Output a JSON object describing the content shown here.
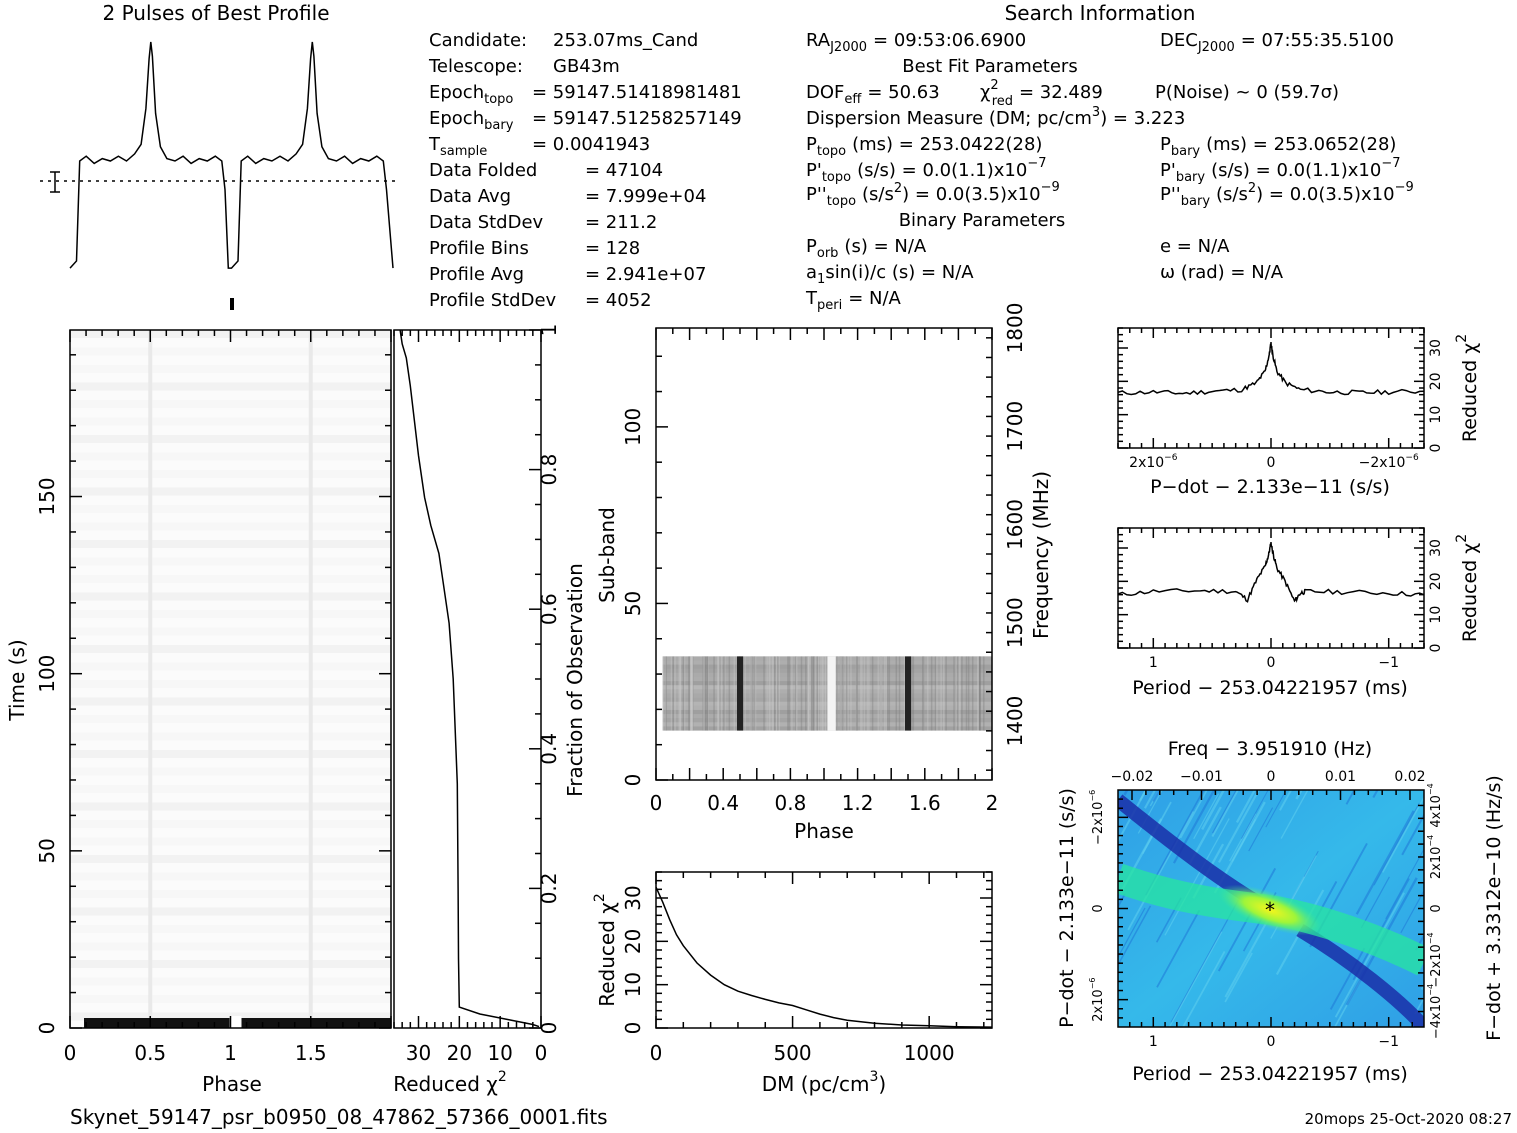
{
  "header": {
    "profile_title": "2 Pulses of Best Profile",
    "search_title": "Search Information",
    "best_fit_title": "Best Fit Parameters",
    "binary_title": "Binary Parameters"
  },
  "info_col1": [
    {
      "label": "Candidate:",
      "value": "253.07ms_Cand"
    },
    {
      "label": "Telescope:",
      "value": "GB43m"
    },
    {
      "label": "Epoch",
      "sub": "topo",
      "value": "= 59147.51418981481"
    },
    {
      "label": "Epoch",
      "sub": "bary",
      "value": "= 59147.51258257149"
    },
    {
      "label": "T",
      "sub": "sample",
      "value": "=  0.0041943"
    },
    {
      "label": "Data Folded",
      "value": "=  47104"
    },
    {
      "label": "Data Avg",
      "value": "=  7.999e+04"
    },
    {
      "label": "Data StdDev",
      "value": "=  211.2"
    },
    {
      "label": "Profile Bins",
      "value": "=  128"
    },
    {
      "label": "Profile Avg",
      "value": "=  2.941e+07"
    },
    {
      "label": "Profile StdDev",
      "value": "=  4052"
    }
  ],
  "info_col2": {
    "ra": "RA",
    "ra_sub": "J2000",
    "ra_value": "= 09:53:06.6900",
    "dof": "DOF",
    "dof_sub": "eff",
    "dof_value": "= 50.63",
    "chi": "χ",
    "chi_sup": "2",
    "chi_sub": "red",
    "chi_value": "= 32.489",
    "dm_text": "Dispersion Measure (DM; pc/cm",
    "dm_sup": "3",
    "dm_value": ") = 3.223",
    "ptopo": "P",
    "ptopo_sub": "topo",
    "ptopo_value": "(ms) =  253.0422(28)",
    "pdtopo": "P'",
    "pdtopo_sub": "topo",
    "pdtopo_value": "(s/s) = 0.0(1.1)x10",
    "pdtopo_exp": "−7",
    "pddtopo": "P''",
    "pddtopo_sub": "topo",
    "pddtopo_value": "(s/s",
    "pddtopo_sup": "2",
    "pddtopo_value2": ") = 0.0(3.5)x10",
    "pddtopo_exp": "−9",
    "porb": "P",
    "porb_sub": "orb",
    "porb_value": "(s) = N/A",
    "asini": "a",
    "asini_sub": "1",
    "asini_value": "sin(i)/c (s) = N/A",
    "tperi": "T",
    "tperi_sub": "peri",
    "tperi_value": "= N/A"
  },
  "info_col3": {
    "dec": "DEC",
    "dec_sub": "J2000",
    "dec_value": "= 07:55:35.5100",
    "pnoise": "P(Noise) ~ 0   (59.7σ)",
    "pbary": "P",
    "pbary_sub": "bary",
    "pbary_value": "(ms) =  253.0652(28)",
    "pdbary": "P'",
    "pdbary_sub": "bary",
    "pdbary_value": "(s/s) = 0.0(1.1)x10",
    "pdbary_exp": "−7",
    "pddbary": "P''",
    "pddbary_sub": "bary",
    "pddbary_value": "(s/s",
    "pddbary_sup": "2",
    "pddbary_value2": ") = 0.0(3.5)x10",
    "pddbary_exp": "−9",
    "ecc": "e = N/A",
    "omega": "ω (rad) = N/A"
  },
  "footer": {
    "filename": "Skynet_59147_psr_b0950_08_47862_57366_0001.fits",
    "stamp": "20mops 25-Oct-2020 08:27"
  },
  "chart_data": [
    {
      "id": "profile",
      "type": "line",
      "title": "2 Pulses of Best Profile",
      "x": [
        0,
        0.04,
        0.06,
        0.1,
        0.15,
        0.2,
        0.25,
        0.3,
        0.35,
        0.4,
        0.44,
        0.47,
        0.49,
        0.5,
        0.51,
        0.53,
        0.56,
        0.6,
        0.65,
        0.7,
        0.75,
        0.8,
        0.85,
        0.9,
        0.94,
        0.96,
        0.98,
        1.0,
        1.04,
        1.06,
        1.1,
        1.15,
        1.2,
        1.25,
        1.3,
        1.35,
        1.4,
        1.44,
        1.47,
        1.49,
        1.5,
        1.51,
        1.53,
        1.56,
        1.6,
        1.65,
        1.7,
        1.75,
        1.8,
        1.85,
        1.9,
        1.94,
        1.96,
        2.0
      ],
      "values": [
        0.05,
        0.08,
        0.5,
        0.52,
        0.49,
        0.51,
        0.5,
        0.52,
        0.5,
        0.53,
        0.57,
        0.72,
        0.93,
        1.0,
        0.94,
        0.7,
        0.56,
        0.51,
        0.5,
        0.52,
        0.49,
        0.51,
        0.5,
        0.52,
        0.5,
        0.38,
        0.05,
        0.05,
        0.08,
        0.5,
        0.52,
        0.49,
        0.51,
        0.5,
        0.52,
        0.5,
        0.53,
        0.57,
        0.72,
        0.93,
        1.0,
        0.94,
        0.7,
        0.56,
        0.51,
        0.5,
        0.52,
        0.49,
        0.51,
        0.5,
        0.52,
        0.5,
        0.38,
        0.05
      ]
    },
    {
      "id": "time-phase",
      "type": "heatmap",
      "xlabel": "Phase",
      "ylabel": "Time (s)",
      "xlim": [
        0,
        2
      ],
      "ylim": [
        0,
        197
      ],
      "xticks": [
        "0",
        "0.5",
        "1",
        "1.5"
      ],
      "xtick_values": [
        0,
        0.5,
        1,
        1.5
      ],
      "yticks": [
        "0",
        "50",
        "100",
        "150"
      ],
      "ytick_values": [
        0,
        50,
        100,
        150
      ],
      "pulse_phases": [
        0.5,
        1.5
      ]
    },
    {
      "id": "chi-vs-time",
      "type": "line",
      "xlabel": "Reduced χ",
      "xlabel_sup": "2",
      "ylabel": "Fraction of Observation",
      "xlim": [
        36,
        0
      ],
      "ylim": [
        0,
        1
      ],
      "xticks": [
        "30",
        "20",
        "10",
        "0"
      ],
      "xtick_values": [
        30,
        20,
        10,
        0
      ],
      "yticks": [
        "0",
        "0.2",
        "0.4",
        "0.6",
        "0.8",
        "1"
      ],
      "ytick_values": [
        0,
        0.2,
        0.4,
        0.6,
        0.8,
        1
      ],
      "x": [
        34.5,
        34.0,
        33.0,
        32.0,
        31.0,
        30.0,
        28.5,
        27.0,
        25.0,
        24.0,
        22.5,
        21.5,
        20.5,
        20.3,
        20.2,
        20.0,
        15.0,
        8.0,
        2.0,
        0.5
      ],
      "y": [
        1.0,
        0.98,
        0.96,
        0.92,
        0.87,
        0.82,
        0.76,
        0.72,
        0.68,
        0.64,
        0.58,
        0.5,
        0.35,
        0.2,
        0.1,
        0.03,
        0.02,
        0.012,
        0.005,
        0.002
      ]
    },
    {
      "id": "subband-phase",
      "type": "heatmap",
      "xlabel": "Phase",
      "ylabel": "Sub-band",
      "ylabel_right": "Frequency (MHz)",
      "xlim": [
        0,
        2
      ],
      "ylim": [
        0,
        128
      ],
      "xticks": [
        "0",
        "0.4",
        "0.8",
        "1.2",
        "1.6",
        "2"
      ],
      "xtick_values": [
        0,
        0.4,
        0.8,
        1.2,
        1.6,
        2
      ],
      "yticks": [
        "0",
        "50",
        "100"
      ],
      "ytick_values": [
        0,
        50,
        100
      ],
      "freq_ticks": [
        "1400",
        "1500",
        "1600",
        "1700",
        "1800"
      ],
      "freq_tick_values": [
        1400,
        1500,
        1600,
        1700,
        1800
      ],
      "freq_lim": [
        1340,
        1800
      ],
      "data_band": [
        14,
        35
      ],
      "pulse_phases": [
        0.5,
        1.5
      ],
      "gap_phases": [
        1.02,
        1.07
      ]
    },
    {
      "id": "chi-vs-dm",
      "type": "line",
      "xlabel": "DM (pc/cm",
      "xlabel_sup": "3",
      "xlabel_end": ")",
      "ylabel": "Reduced χ",
      "ylabel_sup": "2",
      "xlim": [
        0,
        1230
      ],
      "ylim": [
        0,
        36
      ],
      "xticks": [
        "0",
        "500",
        "1000"
      ],
      "xtick_values": [
        0,
        500,
        1000
      ],
      "yticks": [
        "0",
        "10",
        "20",
        "30"
      ],
      "ytick_values": [
        0,
        10,
        20,
        30
      ],
      "x": [
        0,
        25,
        50,
        75,
        100,
        150,
        200,
        250,
        300,
        350,
        400,
        450,
        500,
        550,
        600,
        650,
        700,
        800,
        900,
        1000,
        1100,
        1230
      ],
      "y": [
        32.5,
        29,
        25,
        21.5,
        19,
        15,
        12.2,
        10,
        8.5,
        7.5,
        6.6,
        5.8,
        5.2,
        4.2,
        3.2,
        2.4,
        1.8,
        1.1,
        0.7,
        0.5,
        0.3,
        0.2
      ]
    },
    {
      "id": "chi-vs-pdot",
      "type": "line",
      "xlabel": "P−dot − 2.133e−11 (s/s)",
      "ylabel": "Reduced χ",
      "ylabel_sup": "2",
      "xlim": [
        2.6e-06,
        -2.6e-06
      ],
      "ylim": [
        0,
        36
      ],
      "xticks": [
        "2x10",
        "0",
        "−2x10"
      ],
      "xtick_exp": [
        "−6",
        "",
        "−6"
      ],
      "xtick_values": [
        2e-06,
        0,
        -2e-06
      ],
      "yticks": [
        "0",
        "10",
        "20",
        "30"
      ],
      "ytick_values": [
        0,
        10,
        20,
        30
      ],
      "x": [
        2.6e-06,
        2e-06,
        1.5e-06,
        1e-06,
        5e-07,
        2.5e-07,
        1e-07,
        3e-08,
        0,
        -3e-08,
        -1e-07,
        -2.5e-07,
        -5e-07,
        -1e-06,
        -1.5e-06,
        -2e-06,
        -2.6e-06
      ],
      "y": [
        16.5,
        16.8,
        16.4,
        17.0,
        17.5,
        19.5,
        23.0,
        28.0,
        31.5,
        28.0,
        23.0,
        19.5,
        17.5,
        16.8,
        16.6,
        16.8,
        17.0
      ]
    },
    {
      "id": "chi-vs-period",
      "type": "line",
      "xlabel": "Period − 253.04221957 (ms)",
      "ylabel": "Reduced χ",
      "ylabel_sup": "2",
      "xlim": [
        1.3,
        -1.3
      ],
      "ylim": [
        0,
        36
      ],
      "xticks": [
        "1",
        "0",
        "−1"
      ],
      "xtick_values": [
        1,
        0,
        -1
      ],
      "yticks": [
        "0",
        "10",
        "20",
        "30"
      ],
      "ytick_values": [
        0,
        10,
        20,
        30
      ],
      "x": [
        1.3,
        1.0,
        0.6,
        0.3,
        0.2,
        0.12,
        0.05,
        0.02,
        0,
        -0.02,
        -0.05,
        -0.12,
        -0.2,
        -0.25,
        -0.3,
        -0.6,
        -1.0,
        -1.3
      ],
      "y": [
        16.0,
        17.0,
        17.2,
        17.0,
        14.5,
        20.5,
        24.5,
        28.0,
        31.5,
        28.0,
        24.0,
        20.0,
        14.0,
        16.5,
        17.0,
        16.8,
        16.5,
        16.0
      ]
    },
    {
      "id": "period-pdot",
      "type": "heatmap",
      "title": "Freq − 3.951910 (Hz)",
      "xlabel": "Period − 253.04221957 (ms)",
      "ylabel": "P−dot − 2.133e−11 (s/s)",
      "ylabel_right": "F−dot + 3.3312e−10 (Hz/s)",
      "xlim": [
        1.3,
        -1.3
      ],
      "ylim": [
        2.6e-06,
        -2.6e-06
      ],
      "xticks": [
        "1",
        "0",
        "−1"
      ],
      "xtick_values": [
        1,
        0,
        -1
      ],
      "top_ticks": [
        "−0.02",
        "−0.01",
        "0",
        "0.01",
        "0.02"
      ],
      "top_tick_values": [
        -0.02,
        -0.01,
        0,
        0.01,
        0.02
      ],
      "yticks": [
        "−2x10",
        "0",
        "2x10"
      ],
      "ytick_exp": [
        "−6",
        "",
        "−6"
      ],
      "ytick_values": [
        -2e-06,
        0,
        2e-06
      ],
      "right_ticks": [
        "4x10",
        "2x10",
        "0",
        "−2x10",
        "−4x10"
      ],
      "right_tick_exp": [
        "−4",
        "−4",
        "",
        "−4",
        "−4"
      ],
      "right_tick_values": [
        0.0004,
        0.0002,
        0,
        -0.0002,
        -0.0004
      ],
      "peak": [
        0,
        0
      ],
      "colors": {
        "background": "#2aa8e8",
        "ridge": "#27e6a0",
        "peak": "#f2f21a",
        "trough": "#1a2fa8"
      }
    }
  ]
}
